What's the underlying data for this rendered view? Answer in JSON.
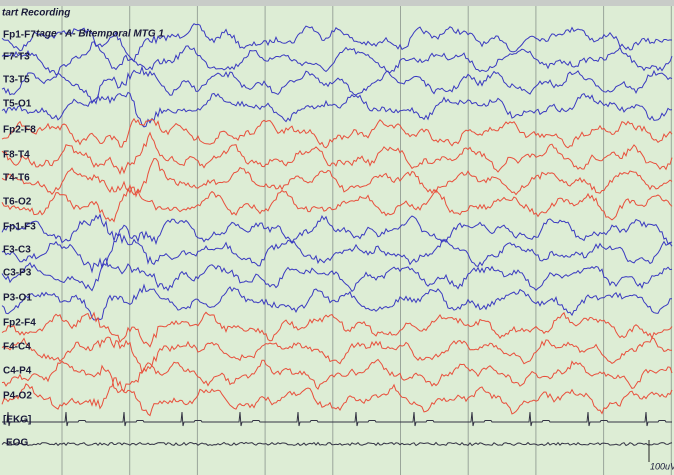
{
  "header": {
    "status": "tart Recording",
    "montage": "tage - A- Bitemporal MTG 1"
  },
  "channels": [
    {
      "label": "Fp1-F7",
      "color": "#3a3ac0"
    },
    {
      "label": "F7-T3",
      "color": "#3a3ac0"
    },
    {
      "label": "T3-T5",
      "color": "#3a3ac0"
    },
    {
      "label": "T5-O1",
      "color": "#3a3ac0"
    },
    {
      "label": "Fp2-F8",
      "color": "#e8503c"
    },
    {
      "label": "F8-T4",
      "color": "#e8503c"
    },
    {
      "label": "T4-T6",
      "color": "#e8503c"
    },
    {
      "label": "T6-O2",
      "color": "#e8503c"
    },
    {
      "label": "Fp1-F3",
      "color": "#3a3ac0"
    },
    {
      "label": "F3-C3",
      "color": "#3a3ac0"
    },
    {
      "label": "C3-P3",
      "color": "#3a3ac0"
    },
    {
      "label": "P3-O1",
      "color": "#3a3ac0"
    },
    {
      "label": "Fp2-F4",
      "color": "#e8503c"
    },
    {
      "label": "F4-C4",
      "color": "#e8503c"
    },
    {
      "label": "C4-P4",
      "color": "#e8503c"
    },
    {
      "label": "P4-O2",
      "color": "#e8503c"
    }
  ],
  "ekg": {
    "label": "[EKG]",
    "color": "#333344"
  },
  "eog": {
    "label": "EOG",
    "color": "#333344"
  },
  "scale": "100uV"
}
